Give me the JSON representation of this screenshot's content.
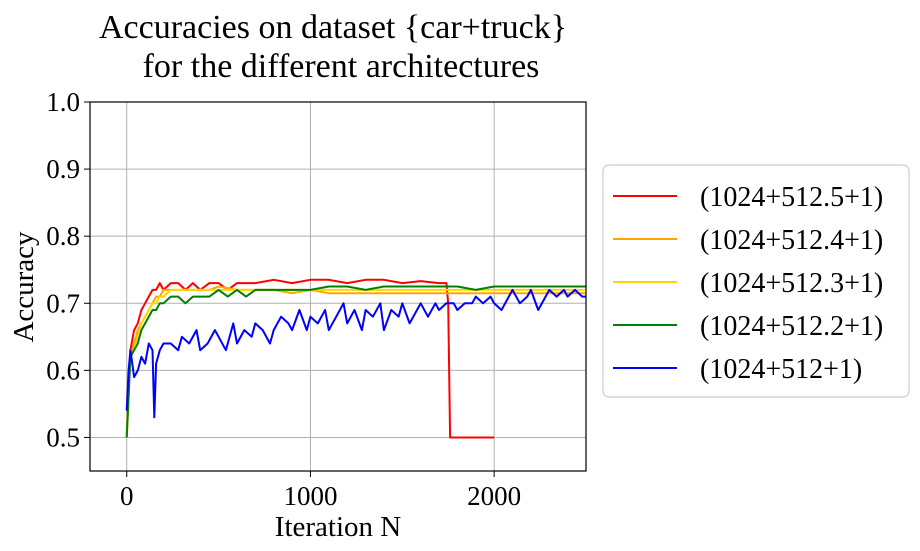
{
  "chart_data": {
    "type": "line",
    "title_line1": "Accuracies on dataset {car+truck}",
    "title_line2": "for the different architectures",
    "xlabel": "Iteration N",
    "ylabel": "Accuracy",
    "xlim": [
      -200,
      2500
    ],
    "ylim": [
      0.45,
      1.0
    ],
    "xticks": [
      0,
      1000,
      2000
    ],
    "xtick_labels": [
      "0",
      "1000",
      "2000"
    ],
    "yticks": [
      0.5,
      0.6,
      0.7,
      0.8,
      0.9,
      1.0
    ],
    "ytick_labels": [
      "0.5",
      "0.6",
      "0.7",
      "0.8",
      "0.9",
      "1.0"
    ],
    "grid": true,
    "legend_position": "right, outside",
    "series": [
      {
        "name": "(1024+512.5+1)",
        "color": "#ff0000",
        "x": [
          0,
          20,
          40,
          60,
          80,
          100,
          120,
          140,
          160,
          180,
          200,
          240,
          280,
          320,
          360,
          400,
          450,
          500,
          550,
          600,
          650,
          700,
          800,
          900,
          1000,
          1100,
          1200,
          1300,
          1400,
          1500,
          1600,
          1700,
          1740,
          1750,
          1760,
          1800,
          1900,
          2000
        ],
        "y": [
          0.5,
          0.63,
          0.66,
          0.67,
          0.69,
          0.7,
          0.71,
          0.72,
          0.72,
          0.73,
          0.72,
          0.73,
          0.73,
          0.72,
          0.73,
          0.72,
          0.73,
          0.73,
          0.72,
          0.73,
          0.73,
          0.73,
          0.735,
          0.73,
          0.735,
          0.735,
          0.73,
          0.735,
          0.735,
          0.73,
          0.733,
          0.73,
          0.73,
          0.7,
          0.5,
          0.5,
          0.5,
          0.5
        ]
      },
      {
        "name": "(1024+512.4+1)",
        "color": "#ffa500",
        "x": [
          0,
          20,
          40,
          60,
          80,
          100,
          120,
          140,
          160,
          180,
          200,
          240,
          280,
          320,
          360,
          400,
          450,
          500,
          600,
          700,
          800,
          900,
          1000,
          1100,
          1200,
          1300,
          1400,
          1500,
          1600,
          1700,
          1800,
          1900,
          2000,
          2100,
          2200,
          2300,
          2400,
          2500
        ],
        "y": [
          0.5,
          0.62,
          0.64,
          0.66,
          0.67,
          0.68,
          0.69,
          0.7,
          0.71,
          0.71,
          0.72,
          0.72,
          0.72,
          0.72,
          0.72,
          0.72,
          0.72,
          0.725,
          0.72,
          0.72,
          0.72,
          0.715,
          0.72,
          0.715,
          0.715,
          0.715,
          0.715,
          0.715,
          0.715,
          0.715,
          0.715,
          0.715,
          0.715,
          0.715,
          0.715,
          0.715,
          0.715,
          0.715
        ]
      },
      {
        "name": "(1024+512.3+1)",
        "color": "#ffd700",
        "x": [
          0,
          20,
          40,
          60,
          80,
          100,
          120,
          140,
          160,
          180,
          200,
          240,
          280,
          320,
          360,
          400,
          450,
          500,
          600,
          700,
          800,
          900,
          1000,
          1100,
          1200,
          1300,
          1400,
          1500,
          1600,
          1700,
          1800,
          1900,
          2000,
          2100,
          2200,
          2300,
          2400,
          2500
        ],
        "y": [
          0.5,
          0.62,
          0.63,
          0.65,
          0.67,
          0.68,
          0.69,
          0.7,
          0.7,
          0.71,
          0.71,
          0.72,
          0.72,
          0.72,
          0.72,
          0.72,
          0.72,
          0.72,
          0.72,
          0.72,
          0.72,
          0.72,
          0.72,
          0.72,
          0.72,
          0.72,
          0.72,
          0.72,
          0.72,
          0.72,
          0.72,
          0.72,
          0.72,
          0.72,
          0.72,
          0.72,
          0.72,
          0.72
        ]
      },
      {
        "name": "(1024+512.2+1)",
        "color": "#008000",
        "x": [
          0,
          20,
          40,
          60,
          80,
          100,
          120,
          140,
          160,
          180,
          200,
          240,
          280,
          320,
          360,
          400,
          450,
          500,
          550,
          600,
          650,
          700,
          800,
          900,
          1000,
          1100,
          1200,
          1300,
          1400,
          1500,
          1600,
          1700,
          1800,
          1900,
          2000,
          2100,
          2200,
          2300,
          2400,
          2500
        ],
        "y": [
          0.5,
          0.62,
          0.63,
          0.64,
          0.66,
          0.67,
          0.68,
          0.69,
          0.69,
          0.7,
          0.7,
          0.71,
          0.71,
          0.7,
          0.71,
          0.71,
          0.71,
          0.72,
          0.71,
          0.72,
          0.71,
          0.72,
          0.72,
          0.72,
          0.72,
          0.725,
          0.725,
          0.72,
          0.725,
          0.725,
          0.725,
          0.725,
          0.725,
          0.72,
          0.725,
          0.725,
          0.725,
          0.725,
          0.725,
          0.725
        ]
      },
      {
        "name": "(1024+512+1)",
        "color": "#0000ff",
        "x": [
          0,
          10,
          20,
          30,
          40,
          60,
          80,
          100,
          120,
          140,
          150,
          160,
          180,
          200,
          240,
          280,
          300,
          340,
          380,
          400,
          440,
          480,
          500,
          540,
          580,
          600,
          640,
          680,
          700,
          740,
          780,
          800,
          840,
          880,
          900,
          940,
          980,
          1000,
          1040,
          1080,
          1100,
          1140,
          1180,
          1200,
          1240,
          1280,
          1300,
          1340,
          1380,
          1400,
          1440,
          1480,
          1500,
          1540,
          1580,
          1600,
          1640,
          1680,
          1700,
          1740,
          1780,
          1800,
          1840,
          1880,
          1900,
          1940,
          1980,
          2000,
          2040,
          2080,
          2100,
          2140,
          2180,
          2200,
          2240,
          2280,
          2300,
          2340,
          2380,
          2400,
          2440,
          2480,
          2500
        ],
        "y": [
          0.54,
          0.6,
          0.63,
          0.61,
          0.59,
          0.6,
          0.62,
          0.61,
          0.64,
          0.63,
          0.53,
          0.61,
          0.63,
          0.64,
          0.64,
          0.63,
          0.65,
          0.64,
          0.66,
          0.63,
          0.64,
          0.66,
          0.65,
          0.63,
          0.67,
          0.64,
          0.66,
          0.65,
          0.67,
          0.66,
          0.64,
          0.66,
          0.68,
          0.67,
          0.66,
          0.69,
          0.66,
          0.68,
          0.67,
          0.69,
          0.66,
          0.68,
          0.7,
          0.67,
          0.69,
          0.66,
          0.69,
          0.68,
          0.7,
          0.66,
          0.69,
          0.68,
          0.7,
          0.67,
          0.69,
          0.7,
          0.68,
          0.7,
          0.69,
          0.7,
          0.7,
          0.69,
          0.7,
          0.7,
          0.71,
          0.7,
          0.71,
          0.7,
          0.69,
          0.71,
          0.72,
          0.7,
          0.71,
          0.72,
          0.69,
          0.71,
          0.72,
          0.71,
          0.72,
          0.71,
          0.72,
          0.71,
          0.71
        ]
      }
    ]
  }
}
